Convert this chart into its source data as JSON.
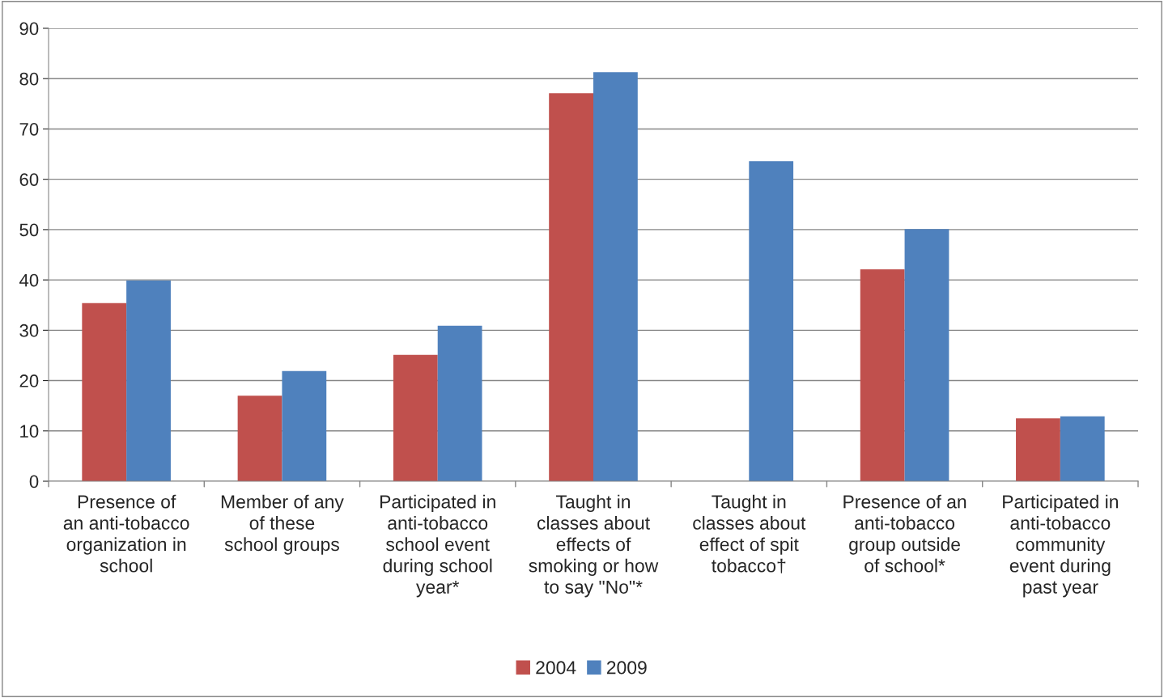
{
  "chart_data": {
    "type": "bar",
    "categories": [
      "Presence of\nan anti-tobacco\norganization in\nschool",
      "Member of any\nof these\nschool groups",
      "Participated in\nanti-tobacco\nschool event\nduring school\nyear*",
      "Taught in\nclasses about\neffects of\nsmoking or how\nto say \"No\"*",
      "Taught in\nclasses about\neffect of spit\ntobacco†",
      "Presence of an\nanti-tobacco\ngroup outside\nof school*",
      "Participated in\nanti-tobacco\ncommunity\nevent during\npast year"
    ],
    "series": [
      {
        "name": "2004",
        "color": "#c0504d",
        "values": [
          35.4,
          17.0,
          25.1,
          77.1,
          null,
          42.1,
          12.5
        ]
      },
      {
        "name": "2009",
        "color": "#4f81bd",
        "values": [
          39.9,
          21.9,
          30.9,
          81.3,
          63.6,
          50.1,
          12.9
        ]
      }
    ],
    "ylim": [
      0,
      90
    ],
    "yticks": [
      0,
      10,
      20,
      30,
      40,
      50,
      60,
      70,
      80,
      90
    ],
    "grid": "y",
    "legend": "bottom"
  }
}
